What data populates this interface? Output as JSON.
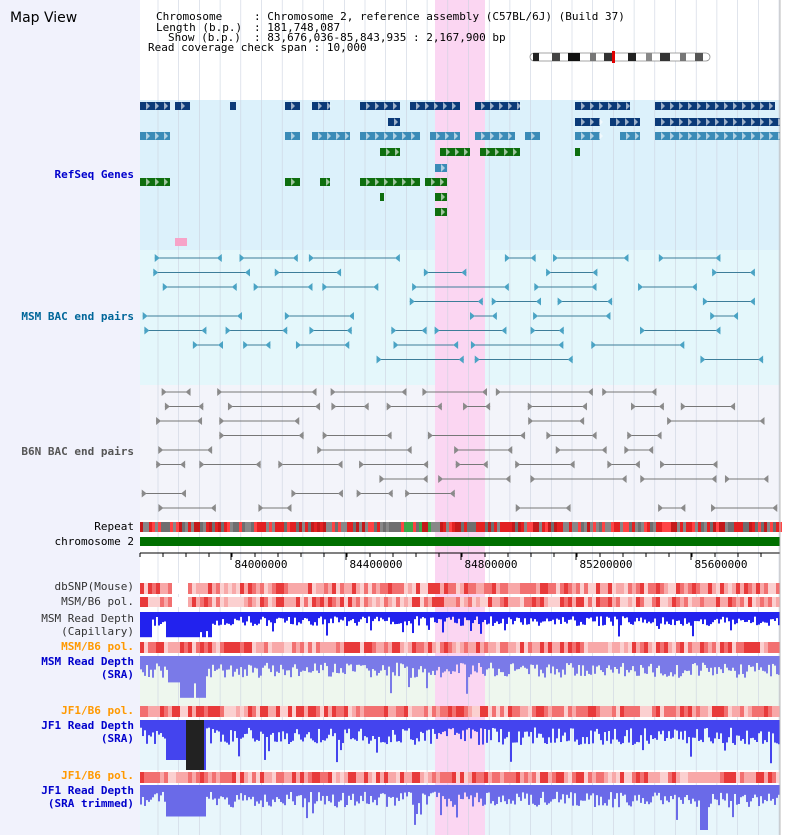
{
  "app": {
    "title": "Map View"
  },
  "header": {
    "chromosome_key": "Chromosome",
    "chromosome_value": "Chromosome 2, reference assembly (C57BL/6J) (Build 37)",
    "length_key": "Length (b.p.)",
    "length_value": "181,748,087",
    "show_key": "Show (b.p.)",
    "show_value": "83,676,036-85,843,935 : 2,167,900 bp",
    "span_key": "Read coverage check span",
    "span_value": "10,000"
  },
  "tracks": {
    "refseq": {
      "label": "RefSeq Genes",
      "color": "#0000cc"
    },
    "msm_bac": {
      "label": "MSM BAC end pairs",
      "color": "#006699"
    },
    "b6n_bac": {
      "label": "B6N BAC end pairs",
      "color": "#555555"
    },
    "repeat": {
      "label": "Repeat"
    },
    "chromosome": {
      "label": "chromosome 2"
    },
    "dbsnp": {
      "label": "dbSNP(Mouse)"
    },
    "msm_b6_pol": {
      "label": "MSM/B6 pol."
    },
    "msm_depth_cap": {
      "label_1": "MSM Read Depth",
      "label_2": "(Capillary)"
    },
    "msm_b6_pol_2": {
      "label": "MSM/B6 pol.",
      "color": "#ff9900"
    },
    "msm_depth_sra": {
      "label_1": "MSM Read Depth",
      "label_2": "(SRA)",
      "color": "#0000cc"
    },
    "jf1_b6_pol": {
      "label": "JF1/B6 pol.",
      "color": "#ff9900"
    },
    "jf1_depth_sra": {
      "label_1": "JF1 Read Depth",
      "label_2": "(SRA)",
      "color": "#0000cc"
    },
    "jf1_b6_pol_2": {
      "label": "JF1/B6 pol.",
      "color": "#ff9900"
    },
    "jf1_depth_trim": {
      "label_1": "JF1 Read Depth",
      "label_2": "(SRA trimmed)",
      "color": "#0000cc"
    }
  },
  "axis": {
    "ticks": [
      "84000000",
      "84400000",
      "84800000",
      "85200000",
      "85600000"
    ]
  },
  "highlight_color": "#fbd6f2"
}
